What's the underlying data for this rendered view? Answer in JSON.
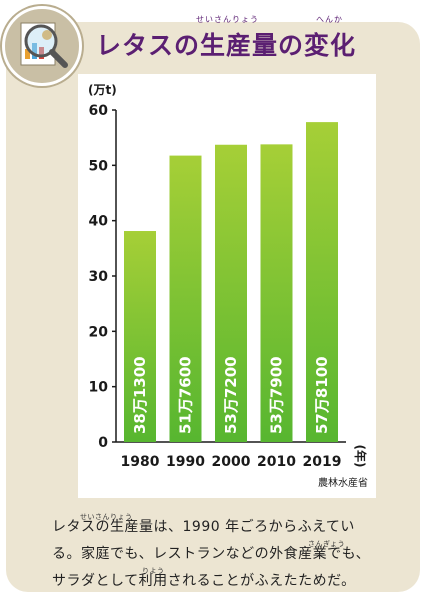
{
  "title": "レタスの生産量の変化",
  "title_ruby_seisanryou": "せいさんりょう",
  "title_ruby_henka": "へんか",
  "icon": "magnifier-document-icon",
  "colors": {
    "title": "#5b1f72",
    "card": "#ece5d2",
    "bar_top": "#a6cf37",
    "bar_bottom": "#57b630"
  },
  "chart_data": {
    "type": "bar",
    "categories": [
      "1980",
      "1990",
      "2000",
      "2010",
      "2019"
    ],
    "values": [
      381300,
      517600,
      537200,
      537900,
      578100
    ],
    "value_labels": [
      "38万1300",
      "51万7600",
      "53万7200",
      "53万7900",
      "57万8100"
    ],
    "ylabel": "(万t)",
    "xlabel": "(年)",
    "yticks": [
      "0",
      "10",
      "20",
      "30",
      "40",
      "50",
      "60"
    ],
    "ylim": [
      0,
      60
    ],
    "source": "農林水産省",
    "grid": false
  },
  "caption": {
    "line1": "レタスの生産量は、1990 年ごろからふえてい",
    "line2": "る。家庭でも、レストランなどの外食産業でも、",
    "line3": "サラダとして利用されることがふえたためだ。",
    "ruby_seisanryou": "せいさんりょう",
    "ruby_sangyou": "さんぎょう",
    "ruby_riyou": "りよう"
  }
}
